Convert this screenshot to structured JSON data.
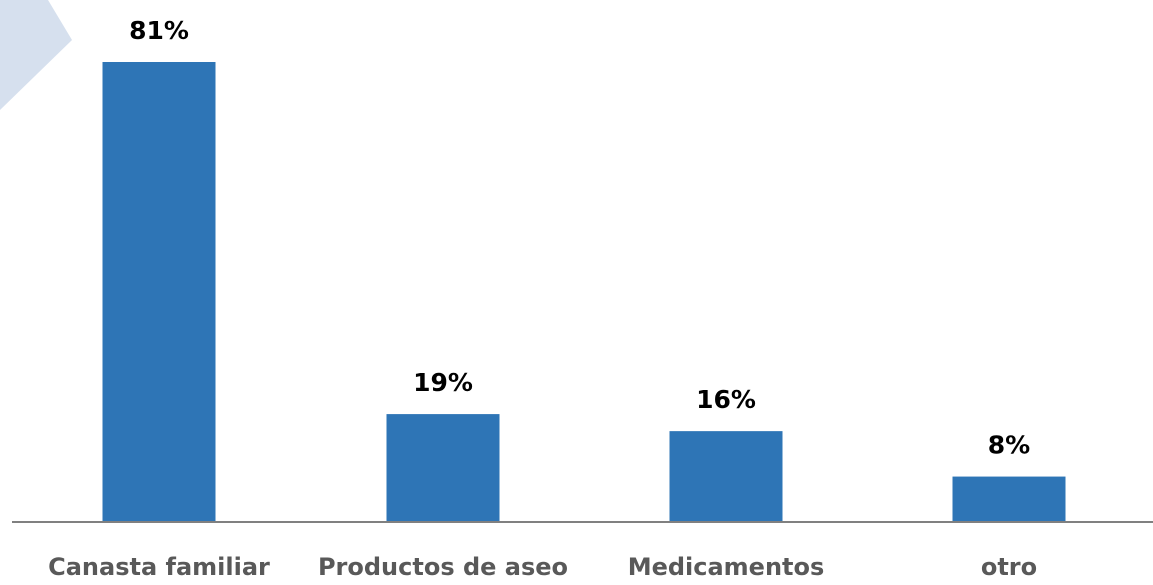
{
  "chart_data": {
    "type": "bar",
    "categories": [
      "Canasta familiar",
      "Productos de aseo",
      "Medicamentos",
      "otro"
    ],
    "values": [
      81,
      19,
      16,
      8
    ],
    "value_labels": [
      "81%",
      "19%",
      "16%",
      "8%"
    ],
    "ylim": [
      0,
      81
    ],
    "grid": false,
    "legend": "none",
    "bar_color": "#2E75B6",
    "axis_color": "#808080"
  },
  "decoration": {
    "corner_shape_color": "#D6E0EE"
  }
}
